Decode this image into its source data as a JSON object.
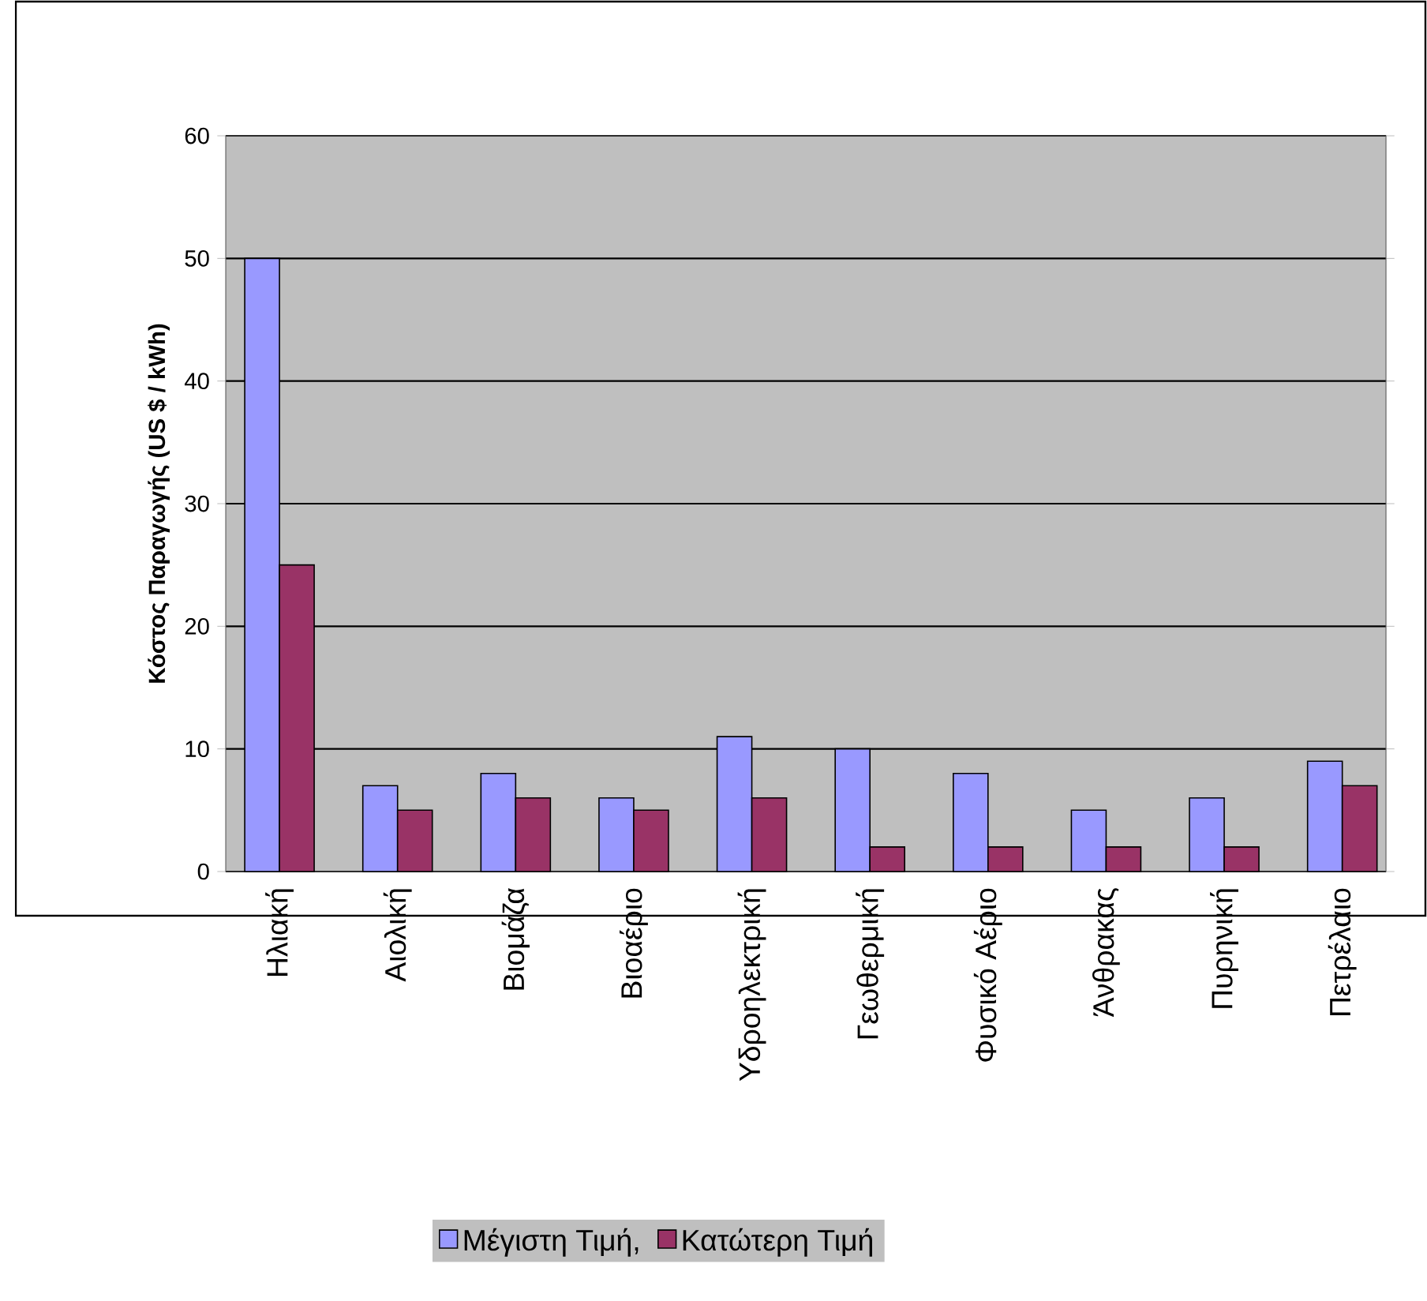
{
  "chart_data": {
    "type": "bar",
    "ylabel": "Κόστος Παραγωγής (US $ / kWh)",
    "categories": [
      "Ηλιακή",
      "Αιολική",
      "Βιομάζα",
      "Βιοαέριο",
      "Υδροηλεκτρική",
      "Γεωθερμική",
      "Φυσικό Αέριο",
      "Άνθρακας",
      "Πυρηνική",
      "Πετρέλαιο"
    ],
    "series": [
      {
        "name": "Μέγιστη Τιμή,",
        "color": "#9999ff",
        "values": [
          50,
          7,
          8,
          6,
          11,
          10,
          8,
          5,
          6,
          9
        ]
      },
      {
        "name": "Κατώτερη Τιμή",
        "color": "#993366",
        "values": [
          25,
          5,
          6,
          5,
          6,
          2,
          2,
          2,
          2,
          7
        ]
      }
    ],
    "ylim": [
      0,
      60
    ],
    "yticks": [
      0,
      10,
      20,
      30,
      40,
      50,
      60
    ],
    "grid": "y",
    "legend": "bottom"
  }
}
